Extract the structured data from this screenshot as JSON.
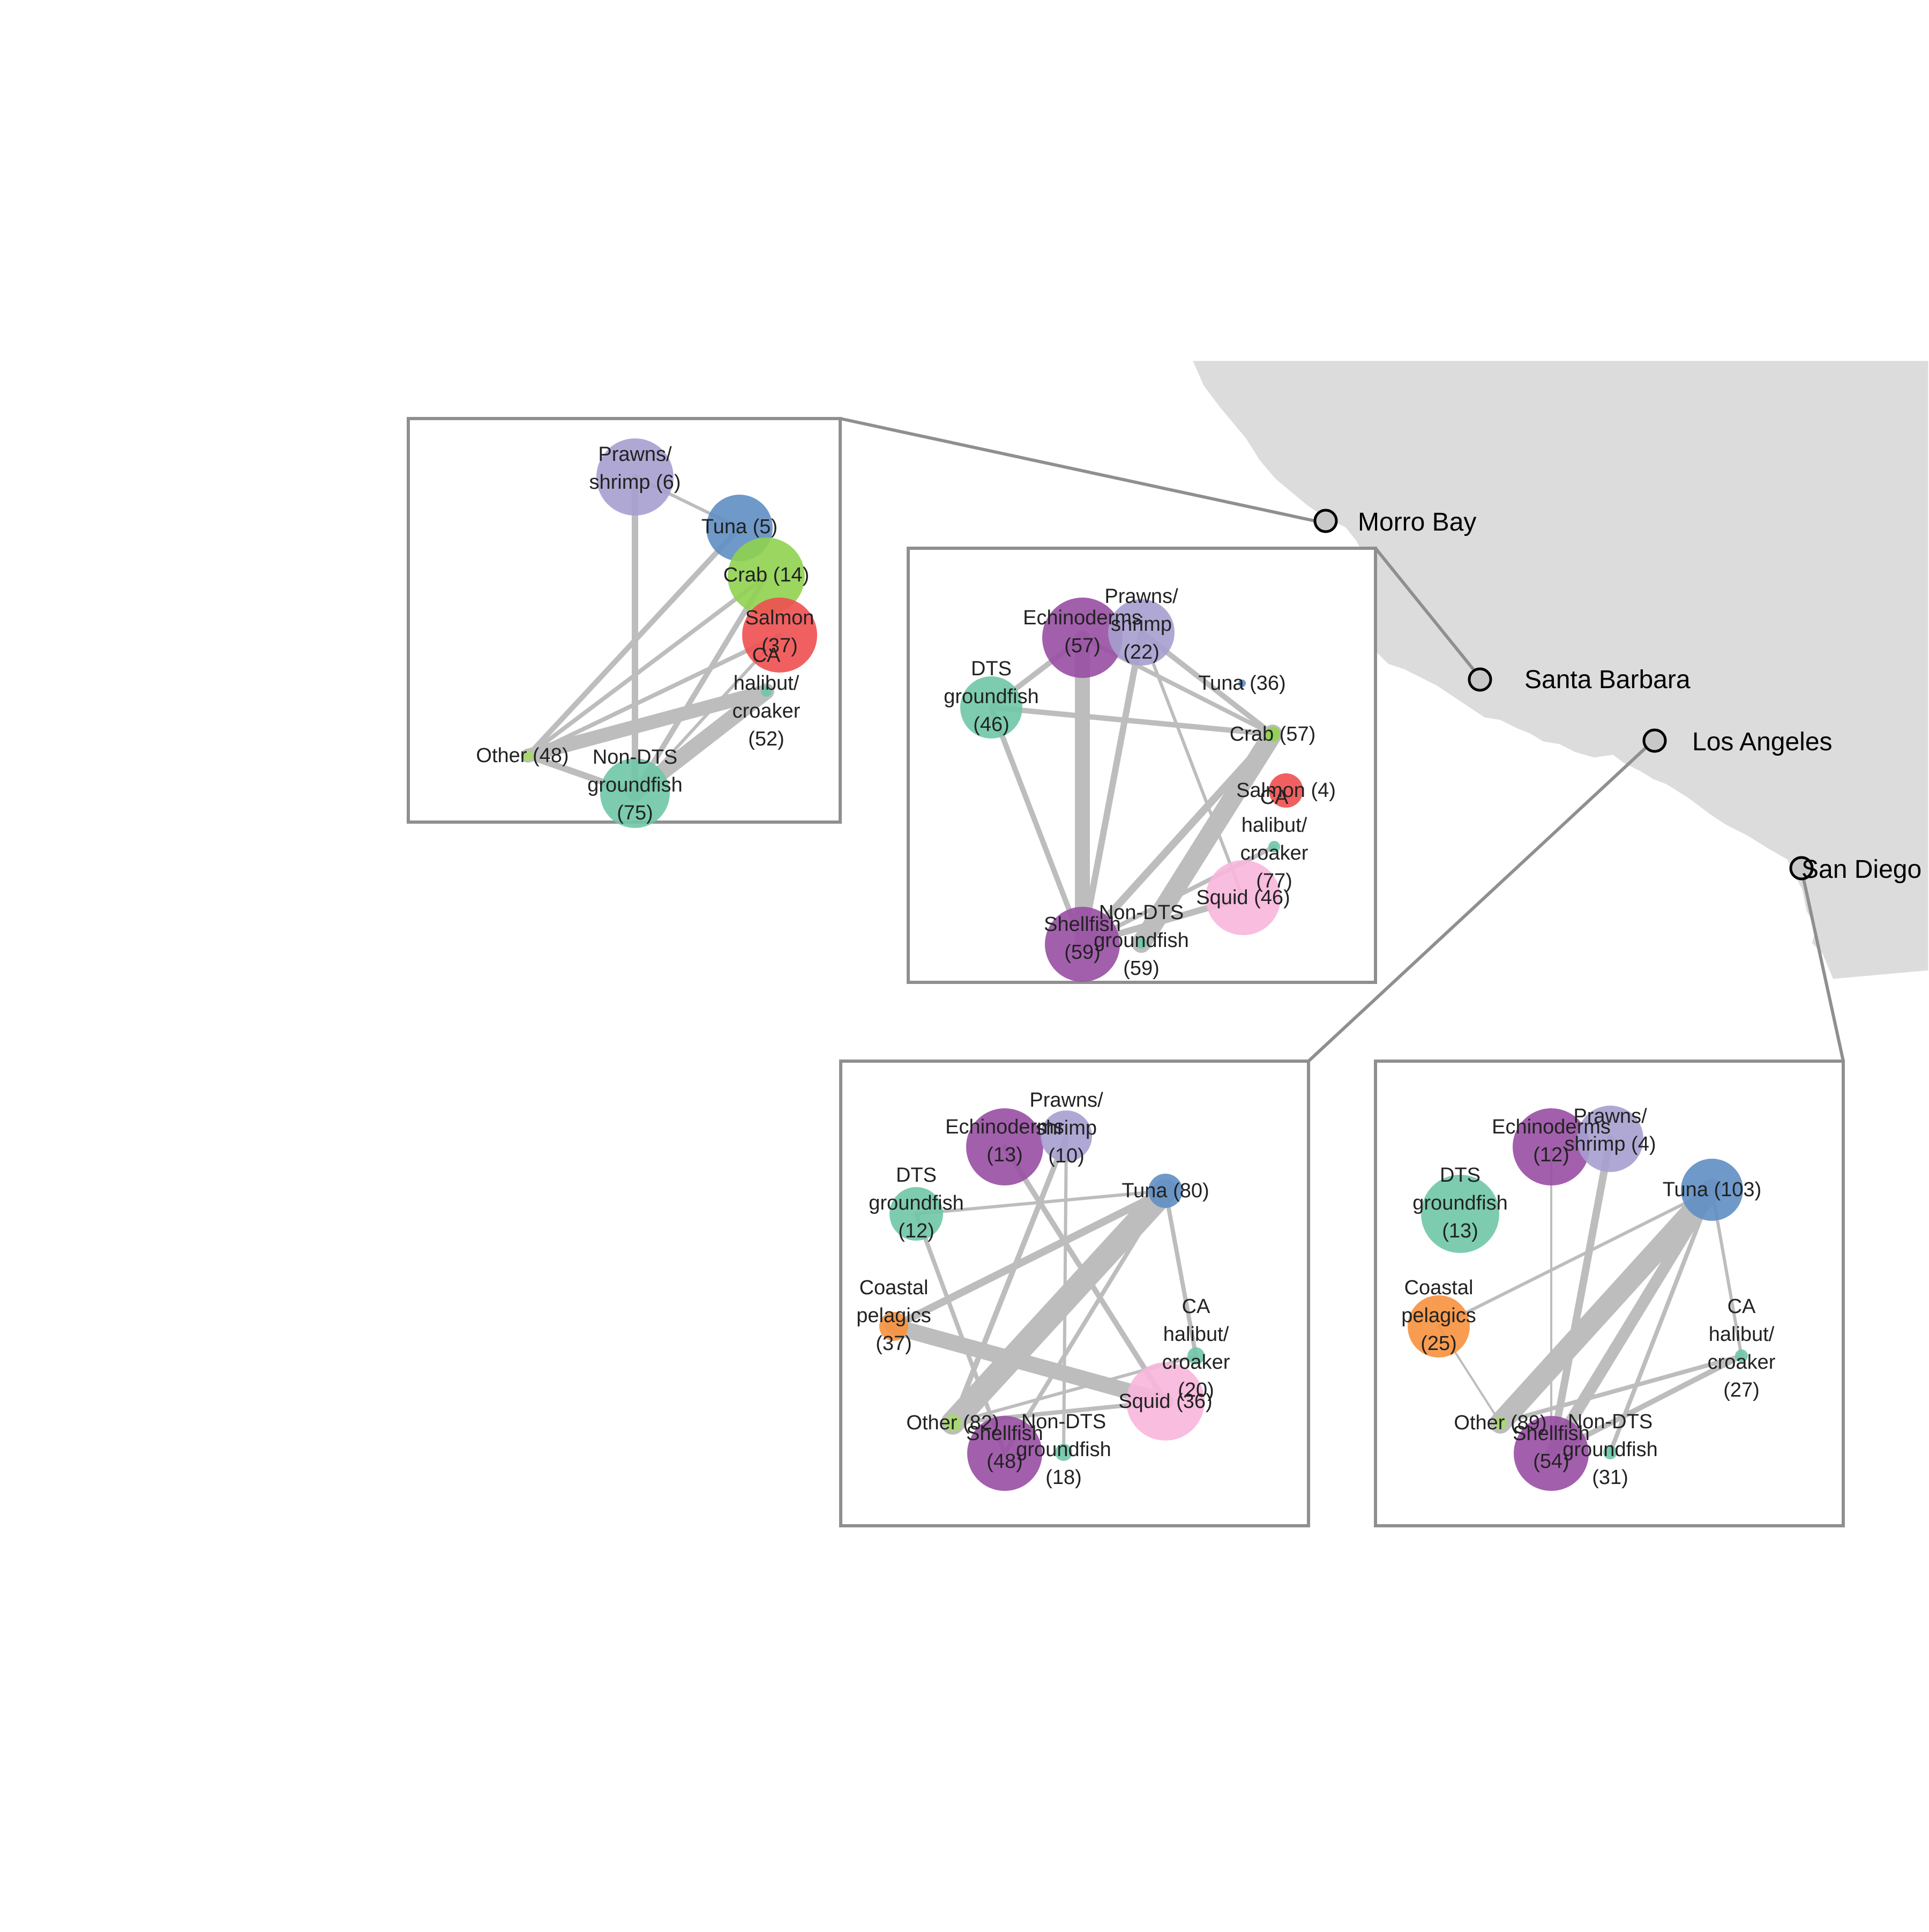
{
  "colors": {
    "land": "#dcdcdc",
    "edge": "#bdbdbd",
    "panel_border": "#8f8f8f",
    "port_fill": "#c8c8c8",
    "Prawns/shrimp": "#a79fcf",
    "Tuna": "#5f8ec3",
    "Crab": "#8fd14f",
    "Salmon": "#ef4f4f",
    "CA halibut/croaker": "#6fc7a6",
    "Non-DTS groundfish": "#6fc7a6",
    "DTS groundfish": "#6fc7a6",
    "Other": "#a6d96a",
    "Echinoderms": "#984ea3",
    "Shellfish": "#984ea3",
    "Squid": "#f7b6dc",
    "Coastal pelagics": "#f6913d"
  },
  "ports": [
    {
      "id": "morro",
      "label": "Morro Bay"
    },
    {
      "id": "sb",
      "label": "Santa Barbara"
    },
    {
      "id": "la",
      "label": "Los Angeles"
    },
    {
      "id": "sd",
      "label": "San Diego"
    }
  ],
  "networks": [
    {
      "port": "Morro Bay",
      "nodes": [
        {
          "group": "Prawns/shrimp",
          "label": "Prawns/\nshrimp (6)",
          "value": 6
        },
        {
          "group": "Tuna",
          "label": "Tuna (5)",
          "value": 5
        },
        {
          "group": "Crab",
          "label": "Crab (14)",
          "value": 14
        },
        {
          "group": "Salmon",
          "label": "Salmon\n(37)",
          "value": 37
        },
        {
          "group": "CA halibut/croaker",
          "label": "CA\nhalibut/\ncroaker\n(52)",
          "value": 52
        },
        {
          "group": "Other",
          "label": "Other (48)",
          "value": 48
        },
        {
          "group": "Non-DTS groundfish",
          "label": "Non-DTS\ngroundfish\n(75)",
          "value": 75
        }
      ],
      "edges": [
        [
          "Prawns/shrimp",
          "Non-DTS groundfish"
        ],
        [
          "Prawns/shrimp",
          "Tuna"
        ],
        [
          "Tuna",
          "Other"
        ],
        [
          "Crab",
          "Other"
        ],
        [
          "Crab",
          "Non-DTS groundfish"
        ],
        [
          "Salmon",
          "Other"
        ],
        [
          "CA halibut/croaker",
          "Other"
        ],
        [
          "CA halibut/croaker",
          "Non-DTS groundfish"
        ],
        [
          "Other",
          "Non-DTS groundfish"
        ],
        [
          "Salmon",
          "Non-DTS groundfish"
        ]
      ]
    },
    {
      "port": "Santa Barbara",
      "nodes": [
        {
          "group": "Echinoderms",
          "label": "Echinoderms\n(57)",
          "value": 57
        },
        {
          "group": "Prawns/shrimp",
          "label": "Prawns/\nshrimp\n(22)",
          "value": 22
        },
        {
          "group": "Tuna",
          "label": "Tuna (36)",
          "value": 36
        },
        {
          "group": "DTS groundfish",
          "label": "DTS\ngroundfish\n(46)",
          "value": 46
        },
        {
          "group": "Crab",
          "label": "Crab (57)",
          "value": 57
        },
        {
          "group": "Salmon",
          "label": "Salmon (4)",
          "value": 4
        },
        {
          "group": "CA halibut/croaker",
          "label": "CA\nhalibut/\ncroaker\n(77)",
          "value": 77
        },
        {
          "group": "Squid",
          "label": "Squid (46)",
          "value": 46
        },
        {
          "group": "Shellfish",
          "label": "Shellfish\n(59)",
          "value": 59
        },
        {
          "group": "Non-DTS groundfish",
          "label": "Non-DTS\ngroundfish\n(59)",
          "value": 59
        }
      ],
      "edges": [
        [
          "Echinoderms",
          "Shellfish"
        ],
        [
          "Echinoderms",
          "DTS groundfish"
        ],
        [
          "Echinoderms",
          "Crab"
        ],
        [
          "Prawns/shrimp",
          "Shellfish"
        ],
        [
          "Prawns/shrimp",
          "Crab"
        ],
        [
          "DTS groundfish",
          "Crab"
        ],
        [
          "DTS groundfish",
          "Shellfish"
        ],
        [
          "Crab",
          "Shellfish"
        ],
        [
          "Crab",
          "Non-DTS groundfish"
        ],
        [
          "Shellfish",
          "Squid"
        ],
        [
          "CA halibut/croaker",
          "Shellfish"
        ],
        [
          "Prawns/shrimp",
          "Squid"
        ]
      ]
    },
    {
      "port": "Los Angeles",
      "nodes": [
        {
          "group": "Echinoderms",
          "label": "Echinoderms\n(13)",
          "value": 13
        },
        {
          "group": "Prawns/shrimp",
          "label": "Prawns/\nshrimp\n(10)",
          "value": 10
        },
        {
          "group": "DTS groundfish",
          "label": "DTS\ngroundfish\n(12)",
          "value": 12
        },
        {
          "group": "Tuna",
          "label": "Tuna (80)",
          "value": 80
        },
        {
          "group": "Coastal pelagics",
          "label": "Coastal\npelagics\n(37)",
          "value": 37
        },
        {
          "group": "CA halibut/croaker",
          "label": "CA\nhalibut/\ncroaker\n(20)",
          "value": 20
        },
        {
          "group": "Squid",
          "label": "Squid (36)",
          "value": 36
        },
        {
          "group": "Other",
          "label": "Other (82)",
          "value": 82
        },
        {
          "group": "Shellfish",
          "label": "Shellfish\n(48)",
          "value": 48
        },
        {
          "group": "Non-DTS groundfish",
          "label": "Non-DTS\ngroundfish\n(18)",
          "value": 18
        }
      ],
      "edges": [
        [
          "Tuna",
          "Other"
        ],
        [
          "Tuna",
          "Coastal pelagics"
        ],
        [
          "Tuna",
          "Shellfish"
        ],
        [
          "Coastal pelagics",
          "Squid"
        ],
        [
          "DTS groundfish",
          "Shellfish"
        ],
        [
          "DTS groundfish",
          "Tuna"
        ],
        [
          "Prawns/shrimp",
          "Other"
        ],
        [
          "Prawns/shrimp",
          "Non-DTS groundfish"
        ],
        [
          "Echinoderms",
          "Squid"
        ],
        [
          "Other",
          "Squid"
        ],
        [
          "CA halibut/croaker",
          "Other"
        ],
        [
          "Tuna",
          "CA halibut/croaker"
        ]
      ]
    },
    {
      "port": "San Diego",
      "nodes": [
        {
          "group": "Echinoderms",
          "label": "Echinoderms\n(12)",
          "value": 12
        },
        {
          "group": "Prawns/shrimp",
          "label": "Prawns/\nshrimp (4)",
          "value": 4
        },
        {
          "group": "DTS groundfish",
          "label": "DTS\ngroundfish\n(13)",
          "value": 13
        },
        {
          "group": "Tuna",
          "label": "Tuna (103)",
          "value": 103
        },
        {
          "group": "Coastal pelagics",
          "label": "Coastal\npelagics\n(25)",
          "value": 25
        },
        {
          "group": "CA halibut/croaker",
          "label": "CA\nhalibut/\ncroaker\n(27)",
          "value": 27
        },
        {
          "group": "Other",
          "label": "Other (89)",
          "value": 89
        },
        {
          "group": "Shellfish",
          "label": "Shellfish\n(54)",
          "value": 54
        },
        {
          "group": "Non-DTS groundfish",
          "label": "Non-DTS\ngroundfish\n(31)",
          "value": 31
        }
      ],
      "edges": [
        [
          "Tuna",
          "Other"
        ],
        [
          "Tuna",
          "Shellfish"
        ],
        [
          "Prawns/shrimp",
          "Shellfish"
        ],
        [
          "Tuna",
          "Coastal pelagics"
        ],
        [
          "CA halibut/croaker",
          "Shellfish"
        ],
        [
          "CA halibut/croaker",
          "Other"
        ],
        [
          "Tuna",
          "Non-DTS groundfish"
        ],
        [
          "Tuna",
          "CA halibut/croaker"
        ],
        [
          "Coastal pelagics",
          "Other"
        ],
        [
          "Echinoderms",
          "Shellfish"
        ]
      ]
    }
  ]
}
